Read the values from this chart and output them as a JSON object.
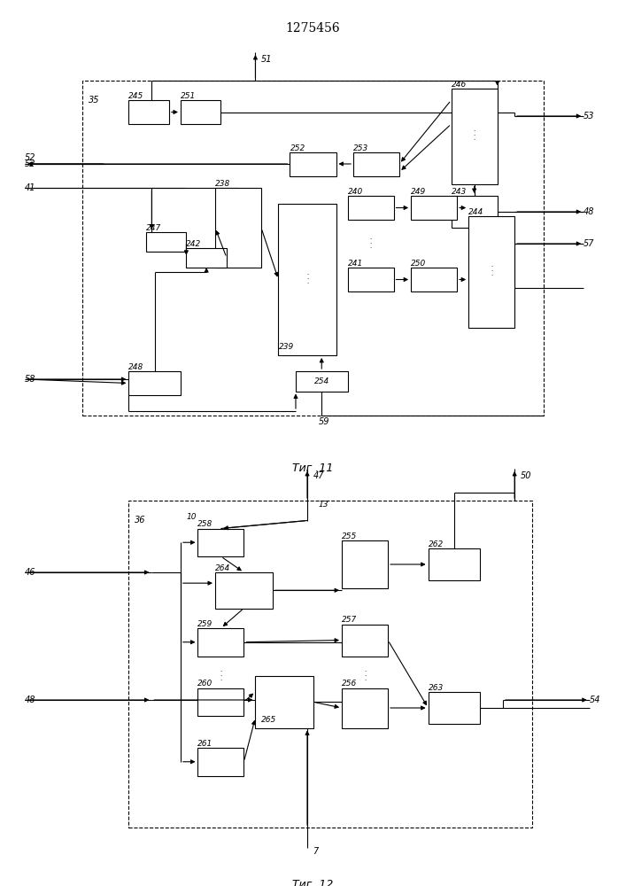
{
  "title": "1275456",
  "fig11_caption": "Τиг .11",
  "fig12_caption": "Τиг. 12"
}
